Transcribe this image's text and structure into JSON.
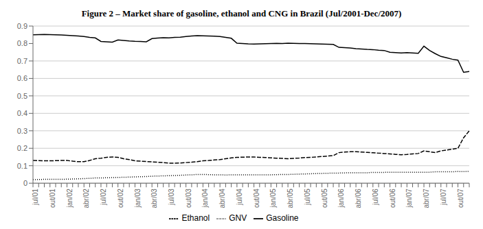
{
  "chart_data": {
    "type": "line",
    "title": "Figure 2 – Market share of gasoline, ethanol and CNG in Brazil (Jul/2001-Dec/2007)",
    "categories": [
      "jul/01",
      null,
      null,
      "out/01",
      null,
      null,
      "jan/02",
      null,
      null,
      "abr/02",
      null,
      null,
      "jul/02",
      null,
      null,
      "out/02",
      null,
      null,
      "jan/03",
      null,
      null,
      "abr/03",
      null,
      null,
      "jul/03",
      null,
      null,
      "out/03",
      null,
      null,
      "jan/04",
      null,
      null,
      "abr/04",
      null,
      null,
      "jul/04",
      null,
      null,
      "out/04",
      null,
      null,
      "jan/05",
      null,
      null,
      "abr/05",
      null,
      null,
      "jul/05",
      null,
      null,
      "out/05",
      null,
      null,
      "jan/06",
      null,
      null,
      "abr/06",
      null,
      null,
      "jul/06",
      null,
      null,
      "out/06",
      null,
      null,
      "jan/07",
      null,
      null,
      "abr/07",
      null,
      null,
      "jul/07",
      null,
      null,
      "out/07",
      null,
      null
    ],
    "series": [
      {
        "name": "Ethanol",
        "color": "#000000",
        "line_style": "dashed",
        "values": [
          0.13,
          0.129,
          0.128,
          0.128,
          0.129,
          0.13,
          0.13,
          0.126,
          0.123,
          0.123,
          0.13,
          0.14,
          0.143,
          0.148,
          0.15,
          0.148,
          0.14,
          0.135,
          0.128,
          0.126,
          0.124,
          0.122,
          0.12,
          0.118,
          0.115,
          0.115,
          0.116,
          0.118,
          0.12,
          0.123,
          0.128,
          0.13,
          0.133,
          0.135,
          0.14,
          0.145,
          0.148,
          0.149,
          0.15,
          0.15,
          0.148,
          0.147,
          0.145,
          0.143,
          0.142,
          0.14,
          0.142,
          0.144,
          0.147,
          0.148,
          0.15,
          0.153,
          0.155,
          0.158,
          0.175,
          0.178,
          0.18,
          0.18,
          0.178,
          0.176,
          0.174,
          0.172,
          0.17,
          0.168,
          0.165,
          0.163,
          0.165,
          0.168,
          0.17,
          0.185,
          0.18,
          0.175,
          0.185,
          0.19,
          0.195,
          0.2,
          0.26,
          0.3
        ]
      },
      {
        "name": "Gasoline",
        "color": "#000000",
        "line_style": "solid",
        "values": [
          0.85,
          0.851,
          0.852,
          0.851,
          0.85,
          0.849,
          0.847,
          0.845,
          0.843,
          0.84,
          0.835,
          0.832,
          0.812,
          0.81,
          0.808,
          0.82,
          0.818,
          0.815,
          0.813,
          0.812,
          0.81,
          0.828,
          0.831,
          0.833,
          0.832,
          0.835,
          0.836,
          0.84,
          0.843,
          0.845,
          0.844,
          0.843,
          0.842,
          0.84,
          0.835,
          0.83,
          0.802,
          0.8,
          0.798,
          0.797,
          0.798,
          0.799,
          0.8,
          0.801,
          0.8,
          0.802,
          0.801,
          0.8,
          0.8,
          0.799,
          0.798,
          0.797,
          0.796,
          0.795,
          0.778,
          0.776,
          0.774,
          0.77,
          0.768,
          0.766,
          0.765,
          0.762,
          0.76,
          0.75,
          0.748,
          0.746,
          0.748,
          0.746,
          0.744,
          0.785,
          0.76,
          0.742,
          0.726,
          0.718,
          0.71,
          0.705,
          0.635,
          0.64
        ]
      },
      {
        "name": "GNV",
        "color": "#000000",
        "line_style": "dotted",
        "values": [
          0.02,
          0.021,
          0.022,
          0.022,
          0.022,
          0.022,
          0.023,
          0.024,
          0.025,
          0.026,
          0.028,
          0.03,
          0.03,
          0.031,
          0.032,
          0.033,
          0.034,
          0.035,
          0.036,
          0.037,
          0.038,
          0.04,
          0.041,
          0.042,
          0.043,
          0.044,
          0.045,
          0.047,
          0.048,
          0.05,
          0.05,
          0.049,
          0.048,
          0.048,
          0.047,
          0.048,
          0.048,
          0.048,
          0.048,
          0.048,
          0.048,
          0.048,
          0.048,
          0.049,
          0.05,
          0.05,
          0.051,
          0.052,
          0.053,
          0.054,
          0.055,
          0.056,
          0.057,
          0.058,
          0.058,
          0.059,
          0.06,
          0.06,
          0.06,
          0.06,
          0.062,
          0.062,
          0.062,
          0.063,
          0.063,
          0.063,
          0.063,
          0.063,
          0.063,
          0.063,
          0.063,
          0.065,
          0.065,
          0.065,
          0.065,
          0.067,
          0.066,
          0.068
        ]
      }
    ],
    "ylim": [
      0,
      0.9
    ],
    "yticks": [
      0,
      0.1,
      0.2,
      0.3,
      0.4,
      0.5,
      0.6,
      0.7,
      0.8,
      0.9
    ],
    "grid": true,
    "legend": "bottom"
  }
}
